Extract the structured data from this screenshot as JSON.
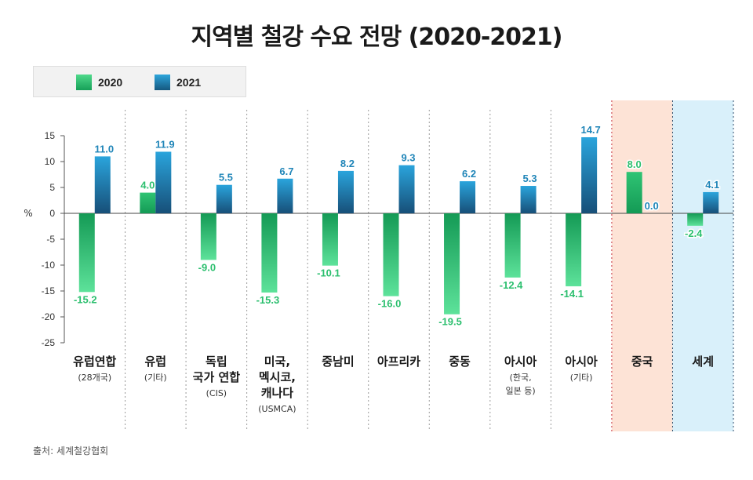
{
  "title": "지역별 철강 수요 전망 (2020-2021)",
  "legend": {
    "label_2020": "2020",
    "label_2021": "2021"
  },
  "colors": {
    "y2020": "#2bbf6e",
    "y2021": "#1f85b8",
    "china_bg": "#fde3d6",
    "world_bg": "#d9f0fa",
    "china_border": "#c8323c",
    "world_border": "#2a4a6a"
  },
  "source": "출처: 세계철강협회",
  "chart_data": {
    "type": "bar",
    "ylabel": "%",
    "ylim": [
      -25,
      15
    ],
    "yticks": [
      "15",
      "10",
      "5",
      "0",
      "-5",
      "-10",
      "-15",
      "-20",
      "-25"
    ],
    "categories": [
      {
        "name": [
          "유럽연합"
        ],
        "sub": [
          "(28개국)"
        ]
      },
      {
        "name": [
          "유럽"
        ],
        "sub": [
          "(기타)"
        ]
      },
      {
        "name": [
          "독립",
          "국가 연합"
        ],
        "sub": [
          "(CIS)"
        ]
      },
      {
        "name": [
          "미국,",
          "멕시코,",
          "캐나다"
        ],
        "sub": [
          "(USMCA)"
        ]
      },
      {
        "name": [
          "중남미"
        ],
        "sub": []
      },
      {
        "name": [
          "아프리카"
        ],
        "sub": []
      },
      {
        "name": [
          "중동"
        ],
        "sub": []
      },
      {
        "name": [
          "아시아"
        ],
        "sub": [
          "(한국,",
          "일본 등)"
        ]
      },
      {
        "name": [
          "아시아"
        ],
        "sub": [
          "(기타)"
        ]
      },
      {
        "name": [
          "중국"
        ],
        "sub": []
      },
      {
        "name": [
          "세계"
        ],
        "sub": []
      }
    ],
    "series": [
      {
        "name": "2020",
        "values": [
          -15.2,
          4.0,
          -9.0,
          -15.3,
          -10.1,
          -16.0,
          -19.5,
          -12.4,
          -14.1,
          8.0,
          -2.4
        ],
        "labels": [
          "-15.2",
          "4.0",
          "-9.0",
          "-15.3",
          "-10.1",
          "-16.0",
          "-19.5",
          "-12.4",
          "-14.1",
          "8.0",
          "-2.4"
        ]
      },
      {
        "name": "2021",
        "values": [
          11.0,
          11.9,
          5.5,
          6.7,
          8.2,
          9.3,
          6.2,
          5.3,
          14.7,
          0.0,
          4.1
        ],
        "labels": [
          "11.0",
          "11.9",
          "5.5",
          "6.7",
          "8.2",
          "9.3",
          "6.2",
          "5.3",
          "14.7",
          "0.0",
          "4.1"
        ]
      }
    ]
  }
}
